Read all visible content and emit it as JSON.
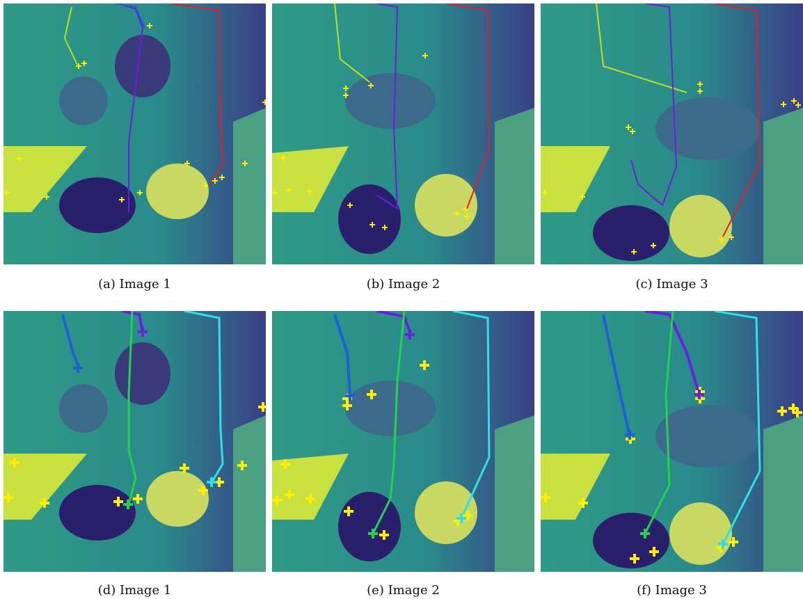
{
  "figure": {
    "rows": [
      {
        "panels": [
          {
            "caption": "(a) Image 1"
          },
          {
            "caption": "(b) Image 2"
          },
          {
            "caption": "(c) Image 3"
          }
        ]
      },
      {
        "panels": [
          {
            "caption": "(d) Image 1"
          },
          {
            "caption": "(e) Image 2"
          },
          {
            "caption": "(f) Image 3"
          }
        ]
      }
    ]
  },
  "colors": {
    "keypoint_marker": "#ffee00",
    "track_yellowgreen": "#b8e020",
    "track_blue": "#1e5fd8",
    "track_purple": "#6a1fe0",
    "track_red": "#e0202a",
    "track_green": "#28d050",
    "track_cyan": "#30e0e8",
    "background_teal": "#2a8a8a",
    "floor_yellow": "#c8e040",
    "shadow_dark": "#3a2a7a"
  }
}
